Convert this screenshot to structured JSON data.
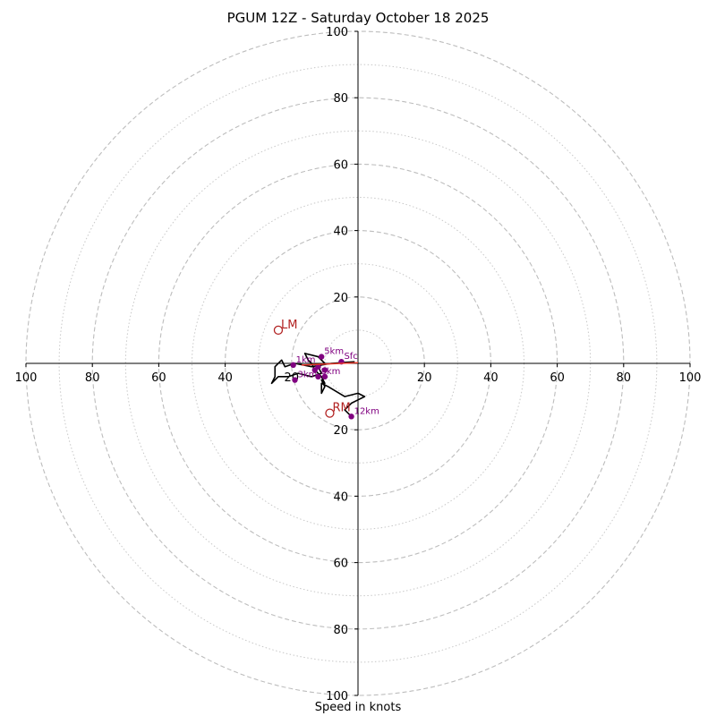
{
  "chart_data": {
    "type": "hodograph",
    "title": "PGUM 12Z - Saturday October 18 2025",
    "xlabel": "Speed in knots",
    "range": [
      -100,
      100
    ],
    "solid_rings": [
      20,
      40,
      60,
      80,
      100
    ],
    "dotted_rings": [
      10,
      30,
      50,
      70,
      90
    ],
    "x_ticks": [
      {
        "value": -100,
        "label": "100"
      },
      {
        "value": -80,
        "label": "80"
      },
      {
        "value": -60,
        "label": "60"
      },
      {
        "value": -40,
        "label": "40"
      },
      {
        "value": -20,
        "label": "20"
      },
      {
        "value": 20,
        "label": "20"
      },
      {
        "value": 40,
        "label": "40"
      },
      {
        "value": 60,
        "label": "60"
      },
      {
        "value": 80,
        "label": "80"
      },
      {
        "value": 100,
        "label": "100"
      }
    ],
    "y_ticks": [
      {
        "value": 100,
        "label": "100"
      },
      {
        "value": 80,
        "label": "80"
      },
      {
        "value": 60,
        "label": "60"
      },
      {
        "value": 40,
        "label": "40"
      },
      {
        "value": 20,
        "label": "20"
      },
      {
        "value": -20,
        "label": "20"
      },
      {
        "value": -40,
        "label": "40"
      },
      {
        "value": -60,
        "label": "60"
      },
      {
        "value": -80,
        "label": "80"
      },
      {
        "value": -100,
        "label": "100"
      }
    ],
    "hodograph_trace": [
      [
        -1,
        0.5
      ],
      [
        -8,
        0
      ],
      [
        -14,
        -1
      ],
      [
        -19,
        0
      ],
      [
        -22,
        -1
      ],
      [
        -23,
        1
      ],
      [
        -25,
        -1
      ],
      [
        -25,
        -4
      ],
      [
        -26,
        -6
      ],
      [
        -24,
        -4
      ],
      [
        -21,
        -4
      ],
      [
        -18,
        -3
      ],
      [
        -14,
        -4
      ],
      [
        -11,
        -3
      ],
      [
        -12,
        -1
      ],
      [
        -10,
        0
      ],
      [
        -12,
        2
      ],
      [
        -16,
        3
      ],
      [
        -15,
        1
      ],
      [
        -14,
        0
      ],
      [
        -13,
        -2
      ],
      [
        -11,
        -4
      ],
      [
        -10,
        -6
      ],
      [
        -11,
        -5
      ],
      [
        -10,
        -7
      ],
      [
        -11,
        -9
      ],
      [
        -11,
        -6
      ],
      [
        -9,
        -7
      ],
      [
        -4,
        -10
      ],
      [
        0,
        -9
      ],
      [
        2,
        -10
      ],
      [
        0,
        -11
      ],
      [
        -2,
        -12
      ],
      [
        -4,
        -14
      ],
      [
        -2,
        -16
      ]
    ],
    "height_markers": [
      {
        "label": "Sfc",
        "u": -5,
        "v": 0.5
      },
      {
        "label": "1km",
        "u": -19.5,
        "v": -0.5
      },
      {
        "label": "3km",
        "u": -19,
        "v": -5
      },
      {
        "label": "5km",
        "u": -11,
        "v": 2
      },
      {
        "label": "8km",
        "u": -12,
        "v": -4
      },
      {
        "label": "12km",
        "u": -2,
        "v": -16
      }
    ],
    "extra_points": [
      {
        "u": -12,
        "v": -1
      },
      {
        "u": -10,
        "v": -2
      },
      {
        "u": -13,
        "v": -2
      },
      {
        "u": -10,
        "v": -4
      }
    ],
    "storm_motion_line": {
      "from": [
        -17,
        -0.5
      ],
      "to": [
        0,
        0.2
      ]
    },
    "storm_motion_points": [
      {
        "label": "LM",
        "u": -24,
        "v": 10
      },
      {
        "label": "RM",
        "u": -8.5,
        "v": -15
      }
    ]
  }
}
